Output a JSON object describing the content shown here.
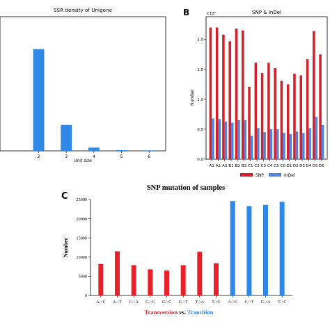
{
  "panels": {
    "b": "B",
    "c": "C"
  },
  "chart_data": [
    {
      "id": "A",
      "type": "bar",
      "title": "SSR density of Unigene",
      "xlabel": "Unit size",
      "ylabel": "",
      "categories": [
        "2",
        "3",
        "4",
        "5",
        "6"
      ],
      "x": [
        2,
        3,
        4,
        5,
        6
      ],
      "values": [
        1100,
        280,
        35,
        8,
        5
      ],
      "xlim": [
        0.6,
        6.6
      ],
      "ylim": [
        0,
        1450
      ],
      "grid": false,
      "color": "#2f87e6"
    },
    {
      "id": "B",
      "type": "bar",
      "title": "SNP & InDel",
      "ylabel": "Number",
      "multiplier": "×10⁵",
      "categories": [
        "A1",
        "A2",
        "A3",
        "B1",
        "B2",
        "B3",
        "C1",
        "C2",
        "C3",
        "C4",
        "C5",
        "C6",
        "D1",
        "D2",
        "D3",
        "D4",
        "D5",
        "D6"
      ],
      "yticks": [
        "0.0",
        "0.5",
        "1.0",
        "1.5",
        "2.0"
      ],
      "ylim": [
        0,
        2.38
      ],
      "grid": false,
      "legend_position": "bottom",
      "series": [
        {
          "name": "SNP",
          "color": "#d3202a",
          "values": [
            2.2,
            2.2,
            2.08,
            1.97,
            2.18,
            2.15,
            1.21,
            1.61,
            1.44,
            1.61,
            1.52,
            1.31,
            1.25,
            1.43,
            1.4,
            1.67,
            2.14,
            1.75
          ]
        },
        {
          "name": "InDel",
          "color": "#4d86e0",
          "values": [
            0.68,
            0.67,
            0.63,
            0.61,
            0.65,
            0.65,
            0.39,
            0.52,
            0.45,
            0.5,
            0.5,
            0.44,
            0.42,
            0.46,
            0.44,
            0.52,
            0.71,
            0.57
          ]
        }
      ]
    },
    {
      "id": "C",
      "type": "bar",
      "title": "SNP mutation of samples",
      "ylabel": "Number",
      "categories": [
        "A->C",
        "A->T",
        "C->A",
        "C->G",
        "G->C",
        "G->T",
        "T->A",
        "T->G",
        "A->G",
        "C->T",
        "G->A",
        "T->C"
      ],
      "values": [
        8200,
        11500,
        7900,
        6800,
        6500,
        7900,
        11400,
        8400,
        24600,
        23300,
        23600,
        24400
      ],
      "colors": [
        "#e8202a",
        "#e8202a",
        "#e8202a",
        "#e8202a",
        "#e8202a",
        "#e8202a",
        "#e8202a",
        "#e8202a",
        "#2f87e6",
        "#2f87e6",
        "#2f87e6",
        "#2f87e6"
      ],
      "yticks": [
        "0",
        "5000",
        "10000",
        "15000",
        "20000",
        "25000"
      ],
      "ylim": [
        0,
        25000
      ],
      "grid": false,
      "footer": {
        "left": "Transversion",
        "mid": " vs. ",
        "right": "Transition",
        "left_color": "#d3202a",
        "right_color": "#2f87e6"
      }
    }
  ]
}
